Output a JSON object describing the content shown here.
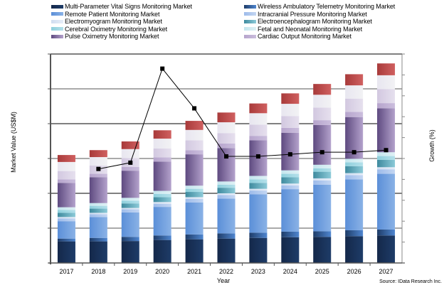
{
  "chart_data": {
    "type": "bar",
    "stacked": true,
    "title": "",
    "xlabel": "Year",
    "ylabel": "Market Value (US$M)",
    "y2label": "Growth (%)",
    "source": "Source: IData Research Inc.",
    "categories": [
      "2017",
      "2018",
      "2019",
      "2020",
      "2021",
      "2022",
      "2023",
      "2024",
      "2025",
      "2026",
      "2027"
    ],
    "ylim": [
      0,
      6
    ],
    "y2lim": [
      0,
      10
    ],
    "grid": true,
    "legend_position": "top",
    "series": [
      {
        "name": "Multi-Parameter Vital Signs Monitoring Market",
        "color_dark": "#14284a",
        "color_light": "#1e3c68",
        "values": [
          0.62,
          0.62,
          0.63,
          0.66,
          0.68,
          0.7,
          0.72,
          0.74,
          0.75,
          0.77,
          0.79
        ]
      },
      {
        "name": "Wireless Ambulatory Telemetry Monitoring Market",
        "color_dark": "#1e3c68",
        "color_light": "#4f86d0",
        "values": [
          0.08,
          0.1,
          0.12,
          0.13,
          0.14,
          0.15,
          0.15,
          0.16,
          0.16,
          0.17,
          0.17
        ]
      },
      {
        "name": "Remote Patient Monitoring Market",
        "color_dark": "#5b8fd8",
        "color_light": "#8ab2e6",
        "values": [
          0.5,
          0.6,
          0.7,
          0.82,
          0.92,
          1.0,
          1.1,
          1.22,
          1.34,
          1.46,
          1.6
        ]
      },
      {
        "name": "Intracranial Pressure Monitoring Market",
        "color_dark": "#9dbbea",
        "color_light": "#c3d6f2",
        "values": [
          0.08,
          0.08,
          0.09,
          0.09,
          0.1,
          0.1,
          0.11,
          0.11,
          0.12,
          0.12,
          0.13
        ]
      },
      {
        "name": "Electromyogram Monitoring Market",
        "color_dark": "#d0ddf0",
        "color_light": "#e6edf8",
        "values": [
          0.04,
          0.04,
          0.04,
          0.05,
          0.05,
          0.05,
          0.05,
          0.05,
          0.06,
          0.06,
          0.06
        ]
      },
      {
        "name": "Electroencephalogram Monitoring Market",
        "color_dark": "#3e8a9e",
        "color_light": "#8ccad8",
        "values": [
          0.12,
          0.12,
          0.13,
          0.14,
          0.15,
          0.16,
          0.17,
          0.18,
          0.19,
          0.2,
          0.21
        ]
      },
      {
        "name": "Cerebral Oximetry Monitoring Market",
        "color_dark": "#8ecfdc",
        "color_light": "#b4e0ea",
        "values": [
          0.08,
          0.08,
          0.08,
          0.09,
          0.09,
          0.09,
          0.1,
          0.1,
          0.1,
          0.11,
          0.11
        ]
      },
      {
        "name": "Fetal and Neonatal Monitoring Market",
        "color_dark": "#c4e6ee",
        "color_light": "#dff1f5",
        "values": [
          0.08,
          0.08,
          0.08,
          0.09,
          0.09,
          0.09,
          0.1,
          0.1,
          0.1,
          0.1,
          0.11
        ]
      },
      {
        "name": "Pulse Oximetry Monitoring Market",
        "color_dark": "#5e4a80",
        "color_light": "#b4a2cc",
        "values": [
          0.7,
          0.74,
          0.78,
          0.84,
          0.9,
          0.96,
          1.02,
          1.08,
          1.14,
          1.2,
          1.26
        ]
      },
      {
        "name": "Cardiac Output Monitoring Market",
        "color_dark": "#b6a4cc",
        "color_light": "#cbbedd",
        "values": [
          0.1,
          0.1,
          0.11,
          0.12,
          0.12,
          0.13,
          0.13,
          0.14,
          0.14,
          0.15,
          0.15
        ]
      },
      {
        "name": "",
        "color_dark": "#d2c8e0",
        "color_light": "#e6e0ee",
        "values": [
          0.24,
          0.24,
          0.25,
          0.26,
          0.28,
          0.3,
          0.32,
          0.34,
          0.36,
          0.38,
          0.4
        ]
      },
      {
        "name": "",
        "color_dark": "#e8e6f0",
        "color_light": "#f2f2f4",
        "values": [
          0.26,
          0.24,
          0.26,
          0.28,
          0.3,
          0.31,
          0.33,
          0.35,
          0.37,
          0.38,
          0.4
        ]
      },
      {
        "name": "",
        "color_dark": "#a83a3a",
        "color_light": "#d06060",
        "values": [
          0.2,
          0.2,
          0.22,
          0.24,
          0.26,
          0.28,
          0.28,
          0.3,
          0.31,
          0.32,
          0.34
        ]
      }
    ],
    "growth": {
      "name": "Growth (%)",
      "color": "#000000",
      "values": [
        null,
        4.5,
        4.8,
        9.3,
        7.4,
        5.1,
        5.1,
        5.2,
        5.3,
        5.3,
        5.4
      ]
    },
    "legend_columns": [
      [
        "Multi-Parameter Vital Signs Monitoring Market",
        "Remote Patient Monitoring Market",
        "Electromyogram Monitoring Market",
        "Cerebral Oximetry Monitoring Market",
        "Pulse Oximetry Monitoring Market"
      ],
      [
        "Wireless Ambulatory Telemetry Monitoring Market",
        "Intracranial Pressure Monitoring Market",
        "Electroencephalogram Monitoring Market",
        "Fetal and Neonatal Monitoring Market",
        "Cardiac Output Monitoring Market"
      ]
    ]
  }
}
